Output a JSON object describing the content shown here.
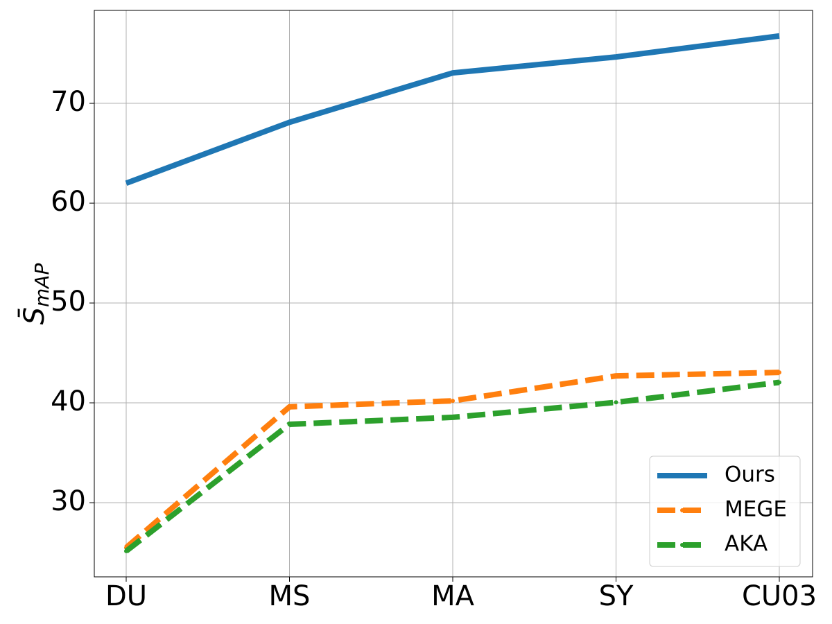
{
  "chart_data": {
    "type": "line",
    "y_label": "S̄",
    "y_label_subscript": "mAP",
    "categories": [
      "DU",
      "MS",
      "MA",
      "SY",
      "CU03"
    ],
    "series": [
      {
        "name": "Ours",
        "color": "#1f77b4",
        "linestyle": "solid",
        "values": [
          62.0,
          68.1,
          73.05,
          74.65,
          76.75
        ]
      },
      {
        "name": "MEGE",
        "color": "#ff7f0e",
        "linestyle": "dashed",
        "marker": "dot",
        "values": [
          25.5,
          39.6,
          40.2,
          42.7,
          43.05
        ]
      },
      {
        "name": "AKA",
        "color": "#2ca02c",
        "linestyle": "dashed",
        "marker": "dot",
        "values": [
          25.15,
          37.85,
          38.55,
          40.05,
          42.05
        ]
      }
    ],
    "ylim": [
      22.57,
      79.31
    ],
    "yticks": [
      30,
      40,
      50,
      60,
      70
    ],
    "grid": true,
    "legend": "lower right"
  }
}
